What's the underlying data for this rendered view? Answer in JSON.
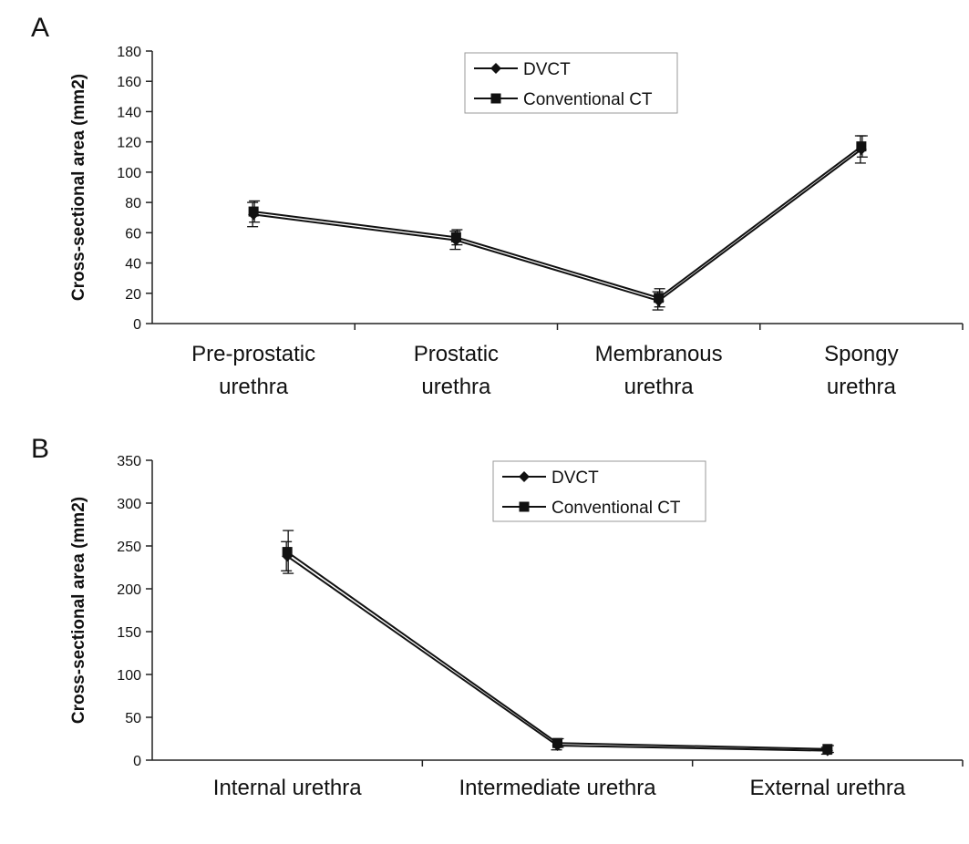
{
  "chart_data": [
    {
      "type": "line",
      "panel_label": "A",
      "ylabel": "Cross-sectional area (mm2)",
      "xlabel": "",
      "ylim": [
        0,
        180
      ],
      "yticks": [
        0,
        20,
        40,
        60,
        80,
        100,
        120,
        140,
        160,
        180
      ],
      "categories": [
        [
          "Pre-prostatic",
          "urethra"
        ],
        [
          "Prostatic",
          "urethra"
        ],
        [
          "Membranous",
          "urethra"
        ],
        [
          "Spongy",
          "urethra"
        ]
      ],
      "legend_position": "top-center",
      "grid": false,
      "series": [
        {
          "name": "DVCT",
          "marker": "diamond",
          "values": [
            72,
            55,
            15,
            115
          ],
          "error": [
            8,
            6,
            6,
            9
          ]
        },
        {
          "name": "Conventional CT",
          "marker": "square",
          "values": [
            74,
            57,
            17,
            117
          ],
          "error": [
            7,
            5,
            6,
            7
          ]
        }
      ]
    },
    {
      "type": "line",
      "panel_label": "B",
      "ylabel": "Cross-sectional area (mm2)",
      "xlabel": "",
      "ylim": [
        0,
        350
      ],
      "yticks": [
        0,
        50,
        100,
        150,
        200,
        250,
        300,
        350
      ],
      "categories": [
        [
          "Internal urethra"
        ],
        [
          "Intermediate urethra"
        ],
        [
          "External urethra"
        ]
      ],
      "legend_position": "top-center",
      "grid": false,
      "series": [
        {
          "name": "DVCT",
          "marker": "diamond",
          "values": [
            238,
            17,
            11
          ],
          "error": [
            17,
            5,
            4
          ]
        },
        {
          "name": "Conventional CT",
          "marker": "square",
          "values": [
            243,
            20,
            13
          ],
          "error": [
            25,
            5,
            4
          ]
        }
      ]
    }
  ]
}
